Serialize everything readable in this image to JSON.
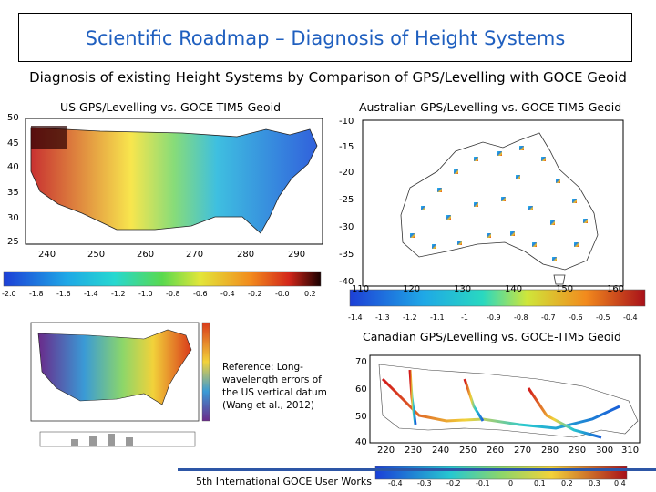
{
  "slide": {
    "title": "Scientific Roadmap – Diagnosis of Height Systems",
    "subtitle": "Diagnosis of existing Height Systems by Comparison of GPS/Levelling with GOCE Geoid",
    "footer": "5th International GOCE User Works"
  },
  "panels": {
    "us": {
      "title": "US GPS/Levelling vs. GOCE-TIM5 Geoid",
      "yticks": [
        "50",
        "45",
        "40",
        "35",
        "30",
        "25"
      ],
      "xticks": [
        "240",
        "250",
        "260",
        "270",
        "280",
        "290"
      ],
      "colorbar_ticks": [
        "-2.0",
        "-1.8",
        "-1.6",
        "-1.4",
        "-1.2",
        "-1.0",
        "-0.8",
        "-0.6",
        "-0.4",
        "-0.2",
        "-0.0",
        "0.2"
      ]
    },
    "australia": {
      "title": "Australian GPS/Levelling vs. GOCE-TIM5 Geoid",
      "yticks": [
        "-10",
        "-15",
        "-20",
        "-25",
        "-30",
        "-35",
        "-40"
      ],
      "xticks": [
        "110",
        "120",
        "130",
        "140",
        "150",
        "160"
      ],
      "colorbar_ticks": [
        "-1.4",
        "-1.3",
        "-1.2",
        "-1.1",
        "-1",
        "-0.9",
        "-0.8",
        "-0.7",
        "-0.6",
        "-0.5",
        "-0.4"
      ]
    },
    "canada": {
      "title": "Canadian GPS/Levelling vs. GOCE-TIM5 Geoid",
      "yticks": [
        "70",
        "60",
        "50",
        "40"
      ],
      "xticks": [
        "220",
        "230",
        "240",
        "250",
        "260",
        "270",
        "280",
        "290",
        "300",
        "310"
      ],
      "colorbar_ticks": [
        "-0.4",
        "-0.3",
        "-0.2",
        "-0.1",
        "0",
        "0.1",
        "0.2",
        "0.3",
        "0.4"
      ]
    },
    "reference": {
      "text": "Reference: Long-wavelength errors of the US vertical datum (Wang et al., 2012)"
    }
  },
  "colors": {
    "title": "#1f5fbf",
    "footer_bar": "#2d56a6"
  }
}
